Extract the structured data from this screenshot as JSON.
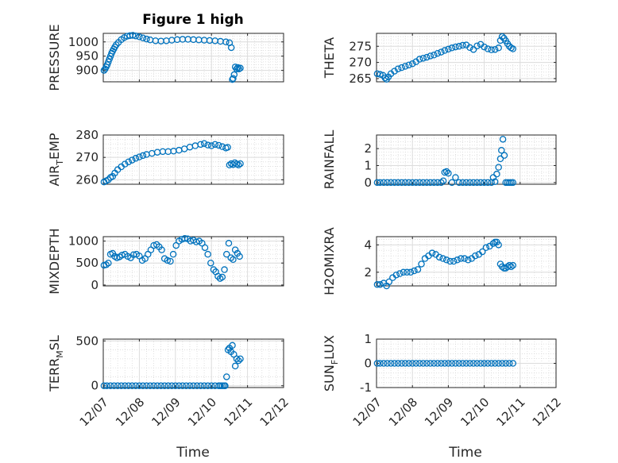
{
  "figure_title": "Figure 1 high",
  "xlabel": "Time",
  "marker_color": "#0072BD",
  "x_tick_labels": [
    "12/07",
    "12/08",
    "12/09",
    "12/10",
    "12/11",
    "12/12"
  ],
  "chart_data": [
    {
      "type": "scatter",
      "title": "Figure 1 high",
      "ylabel_parts": [
        "PRESSURE"
      ],
      "xlabel": "",
      "xlim": [
        0,
        5
      ],
      "ylim": [
        860,
        1030
      ],
      "yticks": [
        900,
        950,
        1000
      ],
      "grid": true,
      "x": [
        0.02,
        0.05,
        0.08,
        0.11,
        0.14,
        0.17,
        0.2,
        0.23,
        0.26,
        0.29,
        0.32,
        0.36,
        0.42,
        0.5,
        0.58,
        0.66,
        0.74,
        0.82,
        0.9,
        1.0,
        1.1,
        1.2,
        1.3,
        1.45,
        1.6,
        1.75,
        1.9,
        2.05,
        2.2,
        2.35,
        2.5,
        2.65,
        2.8,
        2.95,
        3.1,
        3.25,
        3.4,
        3.5,
        3.55,
        3.58,
        3.6,
        3.63,
        3.66,
        3.7,
        3.73,
        3.76,
        3.8
      ],
      "y": [
        900,
        905,
        912,
        920,
        930,
        940,
        950,
        960,
        968,
        975,
        982,
        990,
        998,
        1008,
        1015,
        1020,
        1022,
        1023,
        1021,
        1018,
        1014,
        1010,
        1007,
        1004,
        1003,
        1004,
        1006,
        1008,
        1009,
        1009,
        1008,
        1007,
        1006,
        1005,
        1004,
        1002,
        1000,
        997,
        980,
        868,
        872,
        885,
        912,
        905,
        910,
        905,
        908
      ]
    },
    {
      "type": "scatter",
      "title": "",
      "ylabel_parts": [
        "THETA"
      ],
      "xlabel": "",
      "xlim": [
        0,
        5
      ],
      "ylim": [
        264,
        279
      ],
      "yticks": [
        265,
        270,
        275
      ],
      "grid": true,
      "x": [
        0.02,
        0.1,
        0.18,
        0.24,
        0.28,
        0.33,
        0.4,
        0.5,
        0.6,
        0.7,
        0.8,
        0.9,
        1.0,
        1.1,
        1.2,
        1.3,
        1.4,
        1.5,
        1.6,
        1.7,
        1.8,
        1.9,
        2.0,
        2.1,
        2.2,
        2.3,
        2.4,
        2.5,
        2.6,
        2.7,
        2.8,
        2.9,
        3.0,
        3.1,
        3.2,
        3.3,
        3.4,
        3.45,
        3.5,
        3.55,
        3.6,
        3.65,
        3.7,
        3.75,
        3.8
      ],
      "y": [
        266.5,
        266.3,
        266.0,
        265.2,
        264.8,
        265.5,
        266.5,
        267.3,
        268.0,
        268.4,
        268.8,
        269.2,
        269.6,
        270.2,
        271.0,
        271.3,
        271.6,
        272.0,
        272.3,
        272.8,
        273.2,
        273.7,
        274.1,
        274.5,
        274.8,
        275.0,
        275.3,
        275.4,
        274.6,
        274.0,
        275.1,
        275.6,
        274.8,
        274.2,
        273.9,
        274.0,
        274.5,
        276.8,
        278.0,
        277.5,
        276.7,
        275.8,
        275.0,
        274.5,
        274.2
      ]
    },
    {
      "type": "scatter",
      "title": "",
      "ylabel_parts": [
        "AIR",
        "T",
        "EMP"
      ],
      "xlabel": "",
      "xlim": [
        0,
        5
      ],
      "ylim": [
        258,
        280
      ],
      "yticks": [
        260,
        270,
        280
      ],
      "grid": true,
      "x": [
        0.02,
        0.08,
        0.14,
        0.2,
        0.26,
        0.32,
        0.4,
        0.5,
        0.6,
        0.7,
        0.8,
        0.9,
        1.0,
        1.1,
        1.2,
        1.35,
        1.5,
        1.65,
        1.8,
        1.95,
        2.1,
        2.25,
        2.4,
        2.55,
        2.7,
        2.8,
        2.9,
        3.0,
        3.1,
        3.2,
        3.3,
        3.4,
        3.45,
        3.5,
        3.55,
        3.6,
        3.65,
        3.7,
        3.75,
        3.8
      ],
      "y": [
        259,
        259.5,
        260,
        261,
        261.5,
        263,
        264.5,
        265.8,
        267,
        268,
        268.8,
        269.6,
        270.2,
        270.8,
        271.3,
        271.8,
        272.3,
        272.6,
        272.6,
        272.8,
        273.2,
        273.8,
        274.6,
        275.2,
        275.8,
        276.2,
        275.5,
        275.2,
        275.8,
        275.4,
        274.8,
        274.2,
        274.5,
        266.6,
        267.2,
        266.8,
        267.6,
        267.0,
        266.6,
        267.2
      ]
    },
    {
      "type": "scatter",
      "title": "",
      "ylabel_parts": [
        "RAINFALL"
      ],
      "xlabel": "",
      "xlim": [
        0,
        5
      ],
      "ylim": [
        -0.1,
        2.8
      ],
      "yticks": [
        0,
        1,
        2
      ],
      "grid": true,
      "x": [
        0.02,
        0.1,
        0.2,
        0.3,
        0.4,
        0.5,
        0.6,
        0.7,
        0.8,
        0.9,
        1.0,
        1.1,
        1.2,
        1.3,
        1.4,
        1.5,
        1.6,
        1.7,
        1.8,
        1.86,
        1.9,
        1.95,
        2.0,
        2.1,
        2.2,
        2.3,
        2.4,
        2.5,
        2.6,
        2.7,
        2.8,
        2.9,
        3.0,
        3.1,
        3.2,
        3.25,
        3.3,
        3.35,
        3.4,
        3.45,
        3.48,
        3.52,
        3.56,
        3.6,
        3.65,
        3.7,
        3.75,
        3.8
      ],
      "y": [
        0,
        0,
        0,
        0,
        0,
        0,
        0,
        0,
        0,
        0,
        0,
        0,
        0,
        0,
        0,
        0,
        0,
        0,
        0,
        0.1,
        0.6,
        0.65,
        0.55,
        0,
        0.3,
        0,
        0,
        0,
        0,
        0,
        0,
        0,
        0,
        0,
        0,
        0.3,
        0.05,
        0.5,
        0.9,
        1.4,
        1.9,
        2.55,
        1.6,
        0,
        0,
        0,
        0,
        0
      ]
    },
    {
      "type": "scatter",
      "title": "",
      "ylabel_parts": [
        "MIXDEPTH"
      ],
      "xlabel": "",
      "xlim": [
        0,
        5
      ],
      "ylim": [
        -20,
        1100
      ],
      "yticks": [
        0,
        500,
        1000
      ],
      "grid": true,
      "x": [
        0.02,
        0.08,
        0.14,
        0.2,
        0.26,
        0.32,
        0.38,
        0.45,
        0.52,
        0.6,
        0.68,
        0.76,
        0.84,
        0.92,
        1.0,
        1.08,
        1.16,
        1.24,
        1.32,
        1.4,
        1.48,
        1.55,
        1.62,
        1.7,
        1.78,
        1.86,
        1.94,
        2.02,
        2.1,
        2.18,
        2.26,
        2.34,
        2.42,
        2.5,
        2.58,
        2.66,
        2.74,
        2.82,
        2.9,
        2.98,
        3.06,
        3.12,
        3.18,
        3.24,
        3.3,
        3.36,
        3.42,
        3.48,
        3.54,
        3.6,
        3.66,
        3.72,
        3.78
      ],
      "y": [
        450,
        460,
        500,
        700,
        720,
        650,
        620,
        640,
        680,
        700,
        650,
        620,
        690,
        700,
        660,
        560,
        600,
        700,
        800,
        900,
        920,
        870,
        800,
        600,
        560,
        540,
        700,
        900,
        1000,
        1040,
        1060,
        1050,
        1000,
        1020,
        980,
        1000,
        950,
        850,
        700,
        500,
        350,
        300,
        200,
        150,
        180,
        350,
        700,
        950,
        620,
        580,
        800,
        720,
        650
      ]
    },
    {
      "type": "scatter",
      "title": "",
      "ylabel_parts": [
        "H2OMIXRA"
      ],
      "xlabel": "",
      "xlim": [
        0,
        5
      ],
      "ylim": [
        1,
        4.6
      ],
      "yticks": [
        2,
        4
      ],
      "grid": true,
      "x": [
        0.02,
        0.1,
        0.2,
        0.28,
        0.35,
        0.45,
        0.55,
        0.65,
        0.75,
        0.85,
        0.95,
        1.05,
        1.15,
        1.25,
        1.35,
        1.45,
        1.55,
        1.65,
        1.75,
        1.85,
        1.95,
        2.05,
        2.15,
        2.25,
        2.35,
        2.45,
        2.55,
        2.65,
        2.75,
        2.85,
        2.95,
        3.05,
        3.15,
        3.25,
        3.3,
        3.35,
        3.4,
        3.45,
        3.5,
        3.55,
        3.6,
        3.65,
        3.7,
        3.75,
        3.8
      ],
      "y": [
        1.1,
        1.1,
        1.2,
        1.0,
        1.3,
        1.6,
        1.8,
        1.9,
        2.0,
        2.0,
        2.0,
        2.1,
        2.2,
        2.6,
        3.0,
        3.2,
        3.4,
        3.3,
        3.1,
        3.0,
        2.9,
        2.8,
        2.8,
        2.9,
        3.0,
        3.0,
        2.9,
        3.0,
        3.2,
        3.3,
        3.5,
        3.8,
        3.9,
        4.1,
        4.2,
        4.2,
        4.0,
        2.6,
        2.4,
        2.3,
        2.3,
        2.4,
        2.5,
        2.4,
        2.5
      ]
    },
    {
      "type": "scatter",
      "title": "",
      "ylabel_parts": [
        "TERR",
        "M",
        "SL"
      ],
      "xlabel": "Time",
      "xlim": [
        0,
        5
      ],
      "ylim": [
        -20,
        520
      ],
      "yticks": [
        0,
        500
      ],
      "grid": true,
      "x": [
        0.02,
        0.1,
        0.2,
        0.3,
        0.4,
        0.5,
        0.6,
        0.7,
        0.8,
        0.9,
        1.0,
        1.1,
        1.2,
        1.3,
        1.4,
        1.5,
        1.6,
        1.7,
        1.8,
        1.9,
        2.0,
        2.1,
        2.2,
        2.3,
        2.4,
        2.5,
        2.6,
        2.7,
        2.8,
        2.9,
        3.0,
        3.1,
        3.2,
        3.25,
        3.3,
        3.35,
        3.38,
        3.42,
        3.46,
        3.5,
        3.54,
        3.58,
        3.62,
        3.66,
        3.7,
        3.75,
        3.8
      ],
      "y": [
        0,
        0,
        0,
        0,
        0,
        0,
        0,
        0,
        0,
        0,
        0,
        0,
        0,
        0,
        0,
        0,
        0,
        0,
        0,
        0,
        0,
        0,
        0,
        0,
        0,
        0,
        0,
        0,
        0,
        0,
        0,
        0,
        0,
        0,
        0,
        0,
        0,
        100,
        400,
        420,
        380,
        450,
        350,
        220,
        300,
        280,
        300
      ]
    },
    {
      "type": "scatter",
      "title": "",
      "ylabel_parts": [
        "SUN",
        "F",
        "LUX"
      ],
      "xlabel": "Time",
      "xlim": [
        0,
        5
      ],
      "ylim": [
        -1,
        1
      ],
      "yticks": [
        -1,
        0,
        1
      ],
      "grid": true,
      "x": [
        0.02,
        0.1,
        0.2,
        0.3,
        0.4,
        0.5,
        0.6,
        0.7,
        0.8,
        0.9,
        1.0,
        1.1,
        1.2,
        1.3,
        1.4,
        1.5,
        1.6,
        1.7,
        1.8,
        1.9,
        2.0,
        2.1,
        2.2,
        2.3,
        2.4,
        2.5,
        2.6,
        2.7,
        2.8,
        2.9,
        3.0,
        3.1,
        3.2,
        3.3,
        3.4,
        3.5,
        3.6,
        3.7,
        3.8
      ],
      "y": [
        0,
        0,
        0,
        0,
        0,
        0,
        0,
        0,
        0,
        0,
        0,
        0,
        0,
        0,
        0,
        0,
        0,
        0,
        0,
        0,
        0,
        0,
        0,
        0,
        0,
        0,
        0,
        0,
        0,
        0,
        0,
        0,
        0,
        0,
        0,
        0,
        0,
        0,
        0
      ]
    }
  ]
}
